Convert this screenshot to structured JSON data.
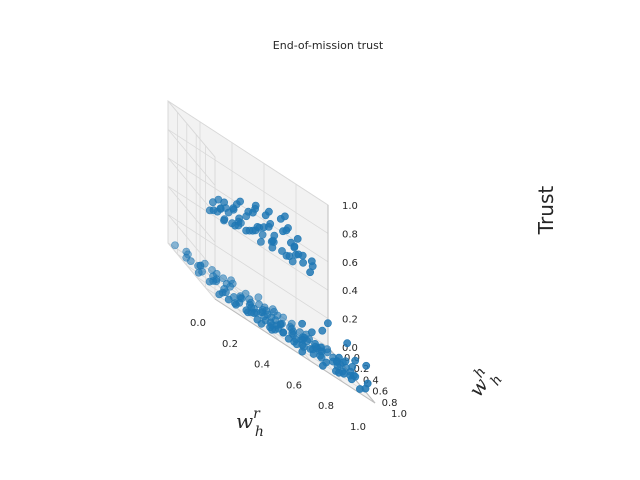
{
  "chart_data": {
    "type": "scatter",
    "projection": "3d",
    "title": "End-of-mission trust",
    "xlabel": {
      "base": "w",
      "sub": "h",
      "sup": "r"
    },
    "ylabel": {
      "base": "w",
      "sub": "h",
      "sup": "h"
    },
    "zlabel": "Trust",
    "xlim": [
      0.0,
      1.0
    ],
    "ylim": [
      0.0,
      1.0
    ],
    "zlim": [
      0.0,
      1.0
    ],
    "xticks": [
      "0.0",
      "0.2",
      "0.4",
      "0.6",
      "0.8",
      "1.0"
    ],
    "yticks": [
      "0.0",
      "0.2",
      "0.4",
      "0.6",
      "0.8",
      "1.0"
    ],
    "zticks": [
      "0.0",
      "0.2",
      "0.4",
      "0.6",
      "0.8",
      "1.0"
    ],
    "grid": true,
    "marker_color": "#1f77b4",
    "pane_color": "#f2f2f2",
    "grid_color": "#d9d9d9",
    "points": [
      [
        0.02,
        0.08,
        0.03
      ],
      [
        0.05,
        0.22,
        0.02
      ],
      [
        0.04,
        0.35,
        0.04
      ],
      [
        0.07,
        0.15,
        0.05
      ],
      [
        0.09,
        0.42,
        0.03
      ],
      [
        0.11,
        0.05,
        0.02
      ],
      [
        0.12,
        0.28,
        0.04
      ],
      [
        0.14,
        0.55,
        0.05
      ],
      [
        0.15,
        0.18,
        0.02
      ],
      [
        0.17,
        0.38,
        0.04
      ],
      [
        0.18,
        0.62,
        0.03
      ],
      [
        0.2,
        0.1,
        0.04
      ],
      [
        0.21,
        0.48,
        0.02
      ],
      [
        0.23,
        0.25,
        0.05
      ],
      [
        0.24,
        0.7,
        0.03
      ],
      [
        0.26,
        0.05,
        0.02
      ],
      [
        0.27,
        0.33,
        0.04
      ],
      [
        0.29,
        0.58,
        0.05
      ],
      [
        0.3,
        0.15,
        0.03
      ],
      [
        0.31,
        0.78,
        0.04
      ],
      [
        0.33,
        0.42,
        0.02
      ],
      [
        0.34,
        0.22,
        0.05
      ],
      [
        0.36,
        0.65,
        0.03
      ],
      [
        0.37,
        0.08,
        0.04
      ],
      [
        0.39,
        0.5,
        0.02
      ],
      [
        0.4,
        0.85,
        0.05
      ],
      [
        0.42,
        0.3,
        0.03
      ],
      [
        0.43,
        0.72,
        0.04
      ],
      [
        0.45,
        0.12,
        0.02
      ],
      [
        0.46,
        0.55,
        0.05
      ],
      [
        0.48,
        0.38,
        0.03
      ],
      [
        0.49,
        0.9,
        0.04
      ],
      [
        0.51,
        0.2,
        0.02
      ],
      [
        0.52,
        0.62,
        0.05
      ],
      [
        0.54,
        0.45,
        0.03
      ],
      [
        0.55,
        0.05,
        0.04
      ],
      [
        0.57,
        0.8,
        0.02
      ],
      [
        0.58,
        0.28,
        0.05
      ],
      [
        0.6,
        0.68,
        0.03
      ],
      [
        0.61,
        0.15,
        0.04
      ],
      [
        0.63,
        0.52,
        0.02
      ],
      [
        0.64,
        0.92,
        0.05
      ],
      [
        0.66,
        0.35,
        0.03
      ],
      [
        0.67,
        0.75,
        0.04
      ],
      [
        0.69,
        0.1,
        0.02
      ],
      [
        0.7,
        0.58,
        0.05
      ],
      [
        0.72,
        0.42,
        0.03
      ],
      [
        0.73,
        0.88,
        0.04
      ],
      [
        0.75,
        0.25,
        0.02
      ],
      [
        0.76,
        0.65,
        0.05
      ],
      [
        0.78,
        0.48,
        0.03
      ],
      [
        0.79,
        0.95,
        0.04
      ],
      [
        0.81,
        0.18,
        0.02
      ],
      [
        0.82,
        0.72,
        0.05
      ],
      [
        0.84,
        0.38,
        0.03
      ],
      [
        0.85,
        0.82,
        0.04
      ],
      [
        0.87,
        0.3,
        0.02
      ],
      [
        0.88,
        0.6,
        0.05
      ],
      [
        0.9,
        0.45,
        0.03
      ],
      [
        0.91,
        0.78,
        0.04
      ],
      [
        0.93,
        0.22,
        0.02
      ],
      [
        0.94,
        0.68,
        0.05
      ],
      [
        0.96,
        0.52,
        0.03
      ],
      [
        0.97,
        0.9,
        0.04
      ],
      [
        0.99,
        0.35,
        0.02
      ],
      [
        0.03,
        0.55,
        0.03
      ],
      [
        0.06,
        0.68,
        0.04
      ],
      [
        0.08,
        0.82,
        0.02
      ],
      [
        0.1,
        0.95,
        0.05
      ],
      [
        0.13,
        0.72,
        0.03
      ],
      [
        0.16,
        0.88,
        0.04
      ],
      [
        0.19,
        0.8,
        0.02
      ],
      [
        0.22,
        0.92,
        0.05
      ],
      [
        0.25,
        0.85,
        0.03
      ],
      [
        0.28,
        0.95,
        0.04
      ],
      [
        0.32,
        0.9,
        0.02
      ],
      [
        0.35,
        0.98,
        0.05
      ],
      [
        0.38,
        0.92,
        0.03
      ],
      [
        0.41,
        0.65,
        0.04
      ],
      [
        0.44,
        0.78,
        0.02
      ],
      [
        0.47,
        0.85,
        0.05
      ],
      [
        0.5,
        0.75,
        0.03
      ],
      [
        0.53,
        0.88,
        0.04
      ],
      [
        0.56,
        0.95,
        0.02
      ],
      [
        0.59,
        0.85,
        0.05
      ],
      [
        0.62,
        0.78,
        0.03
      ],
      [
        0.65,
        0.62,
        0.04
      ],
      [
        0.68,
        0.98,
        0.02
      ],
      [
        0.71,
        0.82,
        0.05
      ],
      [
        0.74,
        0.75,
        0.03
      ],
      [
        0.77,
        0.55,
        0.04
      ],
      [
        0.8,
        0.85,
        0.02
      ],
      [
        0.83,
        0.92,
        0.05
      ],
      [
        0.86,
        0.68,
        0.03
      ],
      [
        0.89,
        0.88,
        0.04
      ],
      [
        0.92,
        0.95,
        0.02
      ],
      [
        0.95,
        0.75,
        0.05
      ],
      [
        0.98,
        0.62,
        0.03
      ],
      [
        0.5,
        0.5,
        0.04
      ],
      [
        0.45,
        0.45,
        0.02
      ],
      [
        0.55,
        0.55,
        0.05
      ],
      [
        0.4,
        0.4,
        0.03
      ],
      [
        0.6,
        0.6,
        0.04
      ],
      [
        0.35,
        0.35,
        0.02
      ],
      [
        0.65,
        0.65,
        0.05
      ],
      [
        0.3,
        0.3,
        0.03
      ],
      [
        0.7,
        0.7,
        0.04
      ],
      [
        0.25,
        0.55,
        0.02
      ],
      [
        0.75,
        0.45,
        0.05
      ],
      [
        0.2,
        0.35,
        0.03
      ],
      [
        0.8,
        0.55,
        0.04
      ],
      [
        0.15,
        0.45,
        0.02
      ],
      [
        0.85,
        0.5,
        0.05
      ],
      [
        0.1,
        0.3,
        0.03
      ],
      [
        0.9,
        0.6,
        0.04
      ],
      [
        0.52,
        0.32,
        0.03
      ],
      [
        0.48,
        0.68,
        0.04
      ],
      [
        0.58,
        0.42,
        0.02
      ],
      [
        0.42,
        0.58,
        0.05
      ],
      [
        0.62,
        0.22,
        0.03
      ],
      [
        0.38,
        0.78,
        0.04
      ],
      [
        0.68,
        0.32,
        0.02
      ],
      [
        0.32,
        0.68,
        0.05
      ],
      [
        0.72,
        0.18,
        0.03
      ],
      [
        0.28,
        0.82,
        0.04
      ],
      [
        0.55,
        0.18,
        0.02
      ],
      [
        0.45,
        0.82,
        0.05
      ],
      [
        0.65,
        0.45,
        0.03
      ],
      [
        0.35,
        0.55,
        0.04
      ],
      [
        0.75,
        0.35,
        0.02
      ],
      [
        0.62,
        0.95,
        0.2
      ],
      [
        0.7,
        0.9,
        0.25
      ],
      [
        0.78,
        0.98,
        0.15
      ],
      [
        0.85,
        0.92,
        0.28
      ],
      [
        0.92,
        0.85,
        0.18
      ],
      [
        0.96,
        0.98,
        0.1
      ],
      [
        0.55,
        0.98,
        0.22
      ],
      [
        0.88,
        0.78,
        0.12
      ],
      [
        0.98,
        0.88,
        0.2
      ],
      [
        0.75,
        0.85,
        0.32
      ],
      [
        0.82,
        0.8,
        0.08
      ],
      [
        0.66,
        0.88,
        0.12
      ],
      [
        0.94,
        0.72,
        0.1
      ],
      [
        0.05,
        0.72,
        0.55
      ],
      [
        0.06,
        0.85,
        0.6
      ],
      [
        0.08,
        0.92,
        0.58
      ],
      [
        0.1,
        0.78,
        0.62
      ],
      [
        0.12,
        0.88,
        0.65
      ],
      [
        0.14,
        0.95,
        0.6
      ],
      [
        0.16,
        0.82,
        0.58
      ],
      [
        0.18,
        0.9,
        0.66
      ],
      [
        0.2,
        0.98,
        0.62
      ],
      [
        0.22,
        0.75,
        0.58
      ],
      [
        0.24,
        0.85,
        0.7
      ],
      [
        0.26,
        0.92,
        0.64
      ],
      [
        0.28,
        0.78,
        0.6
      ],
      [
        0.3,
        0.88,
        0.68
      ],
      [
        0.32,
        0.95,
        0.72
      ],
      [
        0.34,
        0.82,
        0.58
      ],
      [
        0.36,
        0.98,
        0.66
      ],
      [
        0.38,
        0.72,
        0.62
      ],
      [
        0.4,
        0.9,
        0.7
      ],
      [
        0.42,
        0.8,
        0.64
      ],
      [
        0.44,
        0.95,
        0.78
      ],
      [
        0.46,
        0.86,
        0.62
      ],
      [
        0.48,
        0.98,
        0.74
      ],
      [
        0.5,
        0.82,
        0.6
      ],
      [
        0.52,
        0.92,
        0.72
      ],
      [
        0.54,
        0.88,
        0.66
      ],
      [
        0.56,
        0.96,
        0.7
      ],
      [
        0.58,
        0.9,
        0.64
      ],
      [
        0.6,
        0.98,
        0.62
      ],
      [
        0.15,
        0.72,
        0.64
      ],
      [
        0.25,
        0.7,
        0.6
      ],
      [
        0.35,
        0.75,
        0.66
      ],
      [
        0.45,
        0.72,
        0.62
      ],
      [
        0.55,
        0.78,
        0.58
      ],
      [
        0.08,
        0.8,
        0.68
      ],
      [
        0.18,
        0.85,
        0.74
      ],
      [
        0.28,
        0.9,
        0.8
      ],
      [
        0.38,
        0.88,
        0.76
      ],
      [
        0.48,
        0.92,
        0.82
      ],
      [
        0.12,
        0.98,
        0.72
      ],
      [
        0.22,
        0.96,
        0.76
      ],
      [
        0.32,
        0.99,
        0.82
      ],
      [
        0.42,
        0.97,
        0.86
      ],
      [
        0.52,
        0.99,
        0.8
      ],
      [
        0.62,
        0.95,
        0.7
      ],
      [
        0.02,
        0.9,
        0.6
      ],
      [
        0.04,
        0.98,
        0.66
      ],
      [
        0.1,
        0.86,
        0.58
      ],
      [
        0.2,
        0.82,
        0.62
      ],
      [
        0.3,
        0.84,
        0.64
      ],
      [
        0.4,
        0.86,
        0.6
      ],
      [
        0.5,
        0.88,
        0.62
      ],
      [
        0.58,
        0.8,
        0.66
      ],
      [
        0.36,
        0.92,
        0.74
      ],
      [
        0.46,
        0.95,
        0.8
      ],
      [
        0.26,
        0.98,
        0.84
      ],
      [
        0.16,
        0.99,
        0.8
      ],
      [
        0.06,
        0.99,
        0.72
      ],
      [
        0.44,
        0.99,
        0.9
      ],
      [
        0.34,
        0.99,
        0.86
      ],
      [
        0.24,
        0.99,
        0.78
      ],
      [
        0.14,
        0.92,
        0.7
      ],
      [
        0.04,
        0.82,
        0.64
      ],
      [
        0.54,
        0.85,
        0.7
      ],
      [
        0.64,
        0.9,
        0.66
      ]
    ]
  }
}
